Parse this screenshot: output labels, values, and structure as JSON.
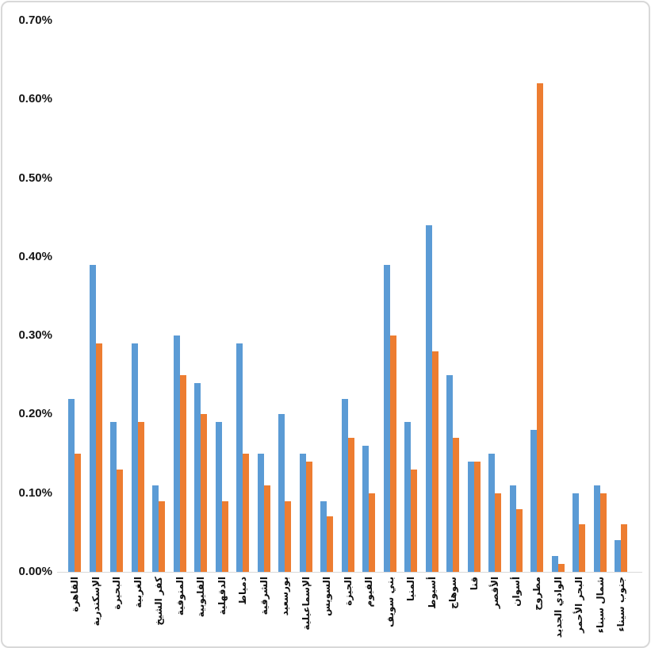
{
  "chart_data": {
    "type": "bar",
    "title": "",
    "xlabel": "",
    "ylabel": "",
    "value_unit": "percent",
    "ylim": [
      0,
      0.7
    ],
    "grid": false,
    "legend": "none",
    "y_ticks": [
      "0.00%",
      "0.10%",
      "0.20%",
      "0.30%",
      "0.40%",
      "0.50%",
      "0.60%",
      "0.70%"
    ],
    "categories": [
      "القاهرة",
      "الإسكندرية",
      "البحيرة",
      "الغربية",
      "كفر الشيخ",
      "المنوفية",
      "القليوبية",
      "الدقهلية",
      "دمياط",
      "الشرقية",
      "بورسعيد",
      "الإسماعيلية",
      "السويس",
      "الجيزة",
      "الفيوم",
      "بني سويف",
      "المنيا",
      "أسيوط",
      "سوهاج",
      "قنا",
      "الأقصر",
      "أسوان",
      "مطروح",
      "الوادي الجديد",
      "البحر الأحمر",
      "شمال سيناء",
      "جنوب سيناء"
    ],
    "series": [
      {
        "name": "",
        "color": "#5B9BD5",
        "values": [
          0.22,
          0.39,
          0.19,
          0.29,
          0.11,
          0.3,
          0.24,
          0.19,
          0.29,
          0.15,
          0.2,
          0.15,
          0.09,
          0.22,
          0.16,
          0.39,
          0.19,
          0.44,
          0.25,
          0.14,
          0.15,
          0.11,
          0.18,
          0.02,
          0.1,
          0.11,
          0.04
        ]
      },
      {
        "name": "",
        "color": "#ED7D31",
        "values": [
          0.15,
          0.29,
          0.13,
          0.19,
          0.09,
          0.25,
          0.2,
          0.09,
          0.15,
          0.11,
          0.09,
          0.14,
          0.07,
          0.17,
          0.1,
          0.3,
          0.13,
          0.28,
          0.17,
          0.14,
          0.1,
          0.08,
          0.62,
          0.01,
          0.06,
          0.1,
          0.06
        ]
      }
    ],
    "colors": {
      "axis_line": "#d9d9d9",
      "tick_label": "#161616",
      "category_label": "#111111",
      "frame_border": "#d8d8d8",
      "background": "#ffffff"
    }
  }
}
